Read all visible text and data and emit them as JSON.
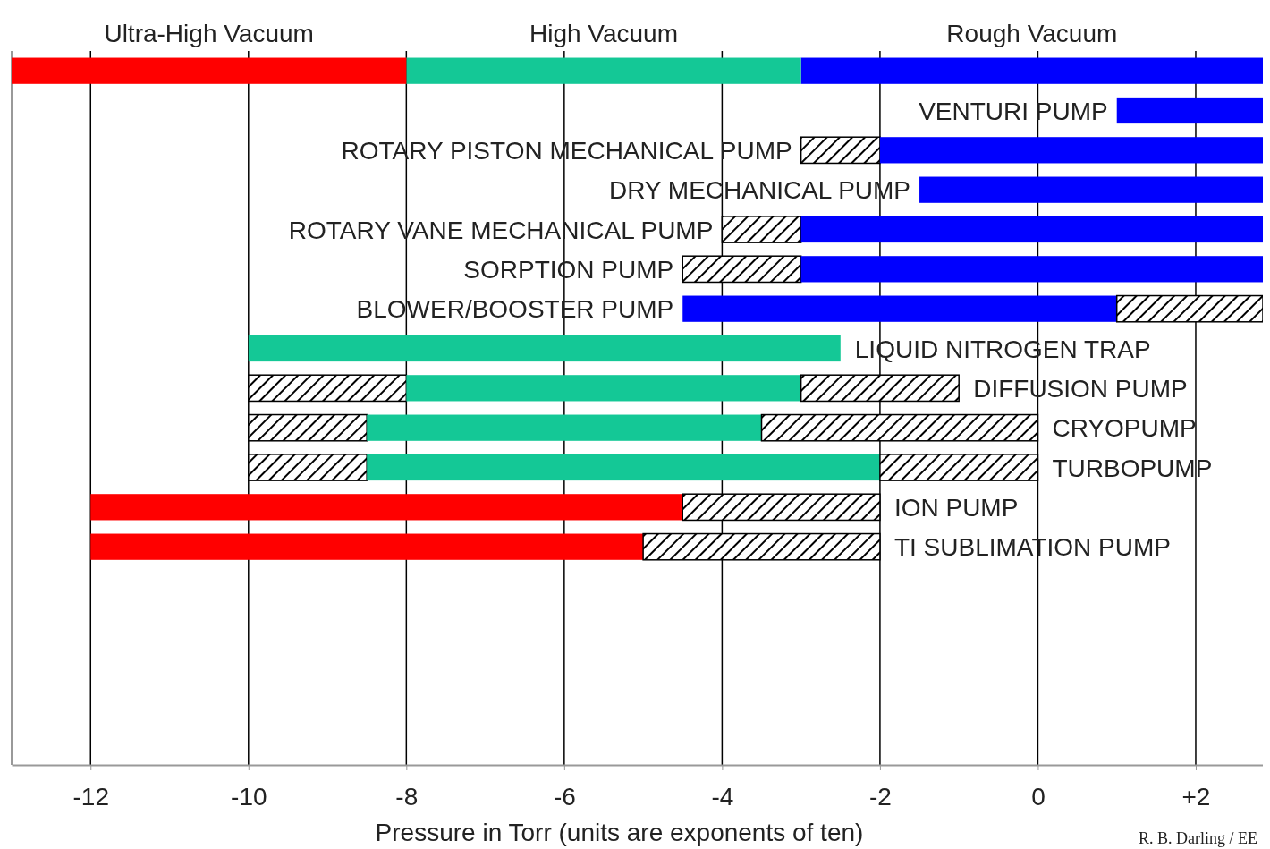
{
  "chart_data": {
    "type": "bar",
    "orientation": "horizontal",
    "xlabel": "Pressure in Torr (units are exponents of ten)",
    "categories": [
      null,
      "VENTURI PUMP",
      "ROTARY PISTON MECHANICAL PUMP",
      "DRY MECHANICAL PUMP",
      "ROTARY VANE MECHANICAL PUMP",
      "SORPTION PUMP",
      "BLOWER/BOOSTER PUMP",
      "LIQUID NITROGEN TRAP",
      "DIFFUSION PUMP",
      "CRYOPUMP",
      "TURBOPUMP",
      "ION PUMP",
      "TI SUBLIMATION PUMP",
      null,
      null,
      null,
      null,
      null
    ],
    "series": [
      {
        "color": "#000000",
        "base": [
          null,
          null,
          -3,
          null,
          -4,
          -4.5,
          null,
          null,
          -10,
          -10,
          -10,
          null,
          null,
          null,
          null,
          null,
          null,
          null
        ],
        "values": [
          null,
          null,
          1,
          null,
          1,
          1.5,
          null,
          null,
          2,
          1.5,
          1.5,
          null,
          null,
          null,
          null,
          null,
          null,
          null
        ]
      },
      {
        "color": "#0000ff",
        "base": [
          -3,
          1,
          -2,
          -1.5,
          -3,
          -3,
          -4.5,
          null,
          null,
          null,
          null,
          null,
          null,
          null,
          null,
          null,
          null,
          null
        ],
        "values": [
          5.85,
          1.85,
          4.85,
          4.35,
          5.85,
          5.85,
          5.5,
          null,
          null,
          null,
          null,
          null,
          null,
          null,
          null,
          null,
          null,
          null
        ]
      },
      {
        "color": "#14c896",
        "base": [
          -8,
          null,
          null,
          null,
          null,
          null,
          null,
          -10,
          -8,
          -8.5,
          -8.5,
          null,
          null,
          null,
          null,
          null,
          null,
          null
        ],
        "values": [
          5,
          null,
          null,
          null,
          null,
          null,
          null,
          7.5,
          5,
          5,
          6.5,
          null,
          null,
          null,
          null,
          null,
          null,
          null
        ]
      },
      {
        "color": "#ff0000",
        "base": [
          -13,
          null,
          null,
          null,
          null,
          null,
          null,
          null,
          null,
          null,
          null,
          -12,
          -12,
          null,
          null,
          null,
          null,
          null
        ],
        "values": [
          5,
          null,
          null,
          null,
          null,
          null,
          null,
          null,
          null,
          null,
          null,
          7.5,
          7,
          null,
          null,
          null,
          null,
          null
        ]
      },
      {
        "color": "#000000",
        "base": [
          null,
          null,
          null,
          null,
          null,
          null,
          1,
          null,
          -3,
          -3.5,
          -2,
          -4.5,
          -5,
          null,
          null,
          null,
          null,
          null
        ],
        "values": [
          null,
          null,
          null,
          null,
          null,
          null,
          1.85,
          null,
          2,
          3.5,
          2,
          2.5,
          3,
          null,
          null,
          null,
          null,
          null
        ]
      }
    ],
    "xlim": [
      -13,
      2.85
    ],
    "xticks": [
      -12,
      -10,
      -8,
      -6,
      -4,
      -2,
      0,
      {
        "value": 2,
        "label": "+2"
      }
    ],
    "grid": "x",
    "annotations": [
      "Ultra-High Vacuum",
      "High Vacuum",
      "Rough Vacuum",
      "R. B. Darling / EE"
    ]
  }
}
